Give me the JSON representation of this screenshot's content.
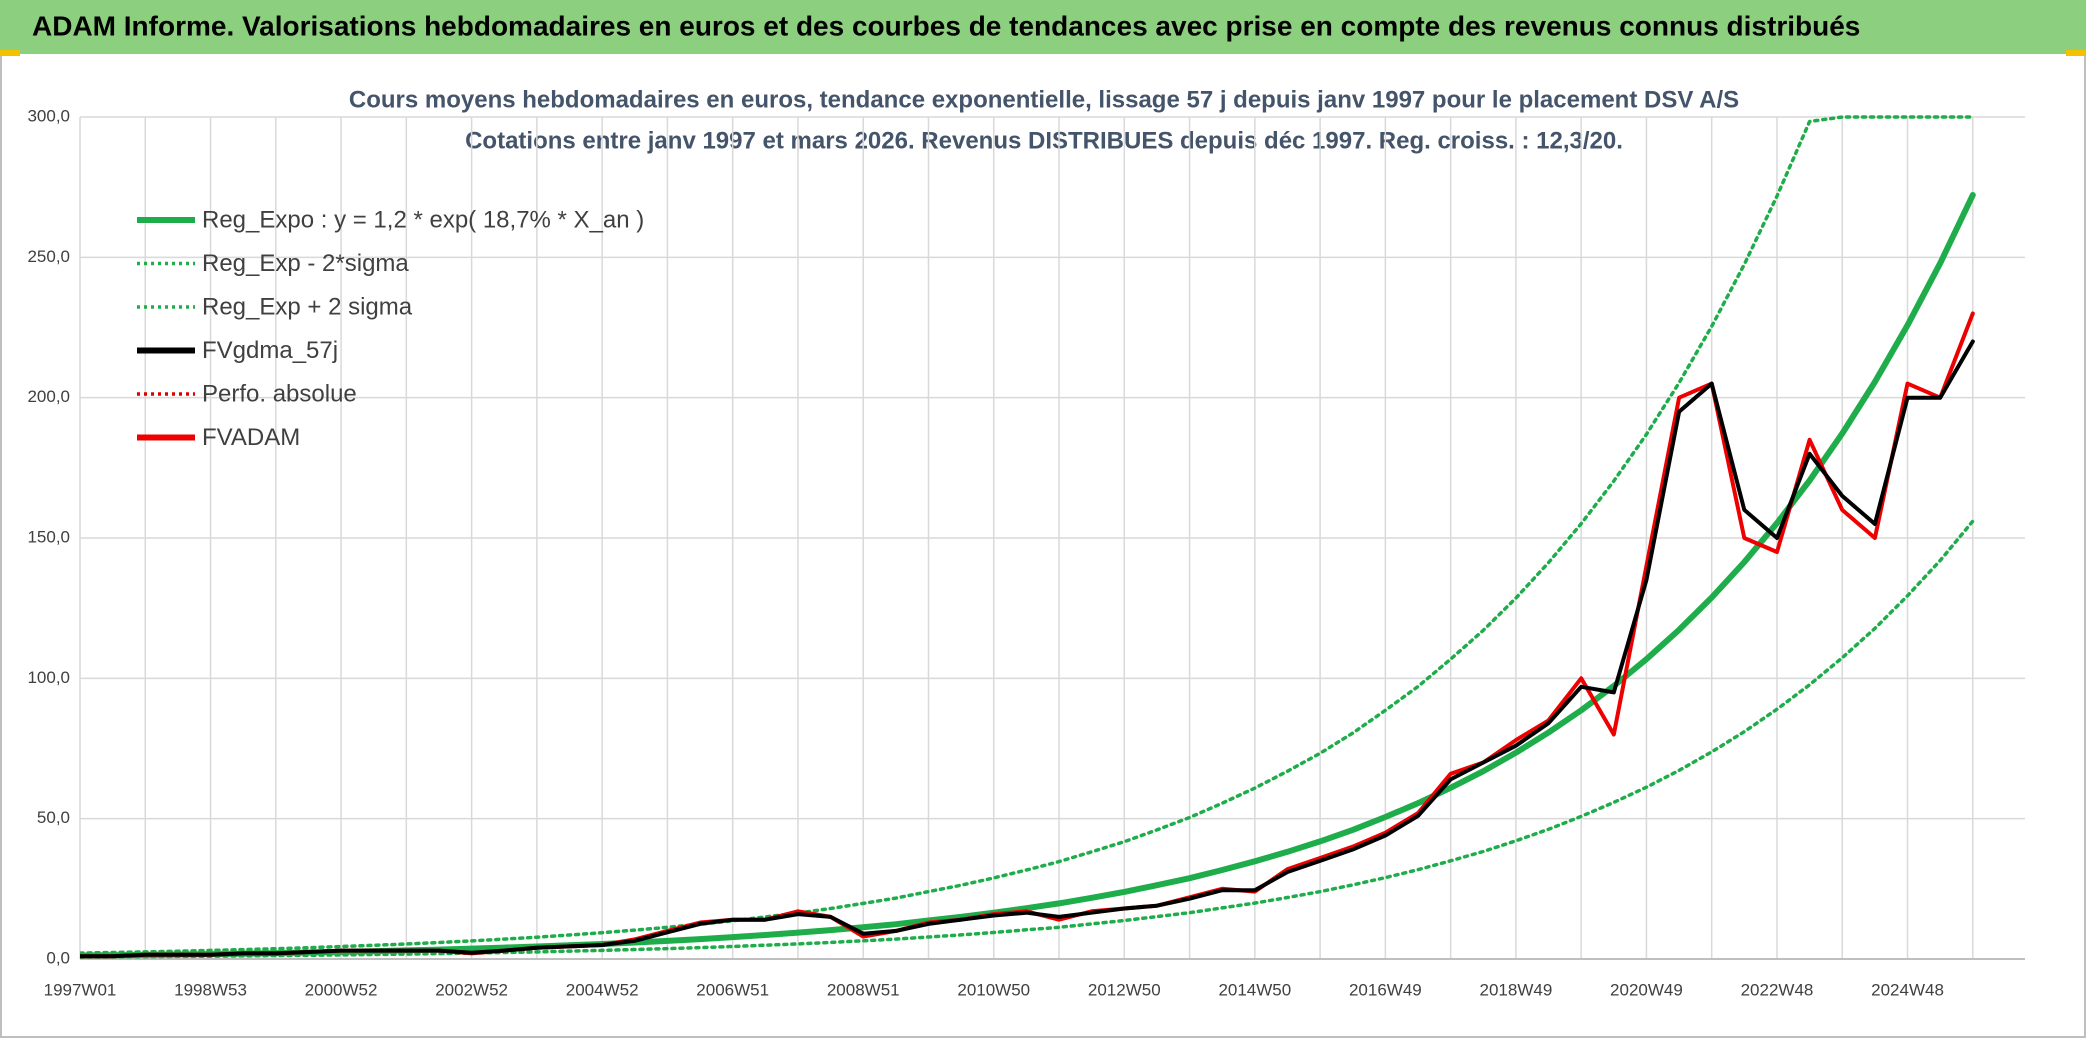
{
  "banner": "ADAM Informe. Valorisations hebdomadaires en euros et des courbes de tendances avec prise en compte des revenus connus distribués",
  "chart_data": {
    "type": "line",
    "title": "Cours moyens hebdomadaires en euros, tendance exponentielle, lissage 57 j depuis janv 1997 pour le placement DSV A/S",
    "subtitle": "Cotations entre janv 1997 et mars 2026. Revenus DISTRIBUES depuis déc 1997. Reg. croiss. : 12,3/20.",
    "categories": [
      "1997W01",
      null,
      null,
      null,
      "1998W53",
      null,
      null,
      null,
      "2000W52",
      null,
      null,
      null,
      "2002W52",
      null,
      null,
      null,
      "2004W52",
      null,
      null,
      null,
      "2006W51",
      null,
      null,
      null,
      "2008W51",
      null,
      null,
      null,
      "2010W50",
      null,
      null,
      null,
      "2012W50",
      null,
      null,
      null,
      "2014W50",
      null,
      null,
      null,
      "2016W49",
      null,
      null,
      null,
      "2018W49",
      null,
      null,
      null,
      "2020W49",
      null,
      null,
      null,
      "2022W48",
      null,
      null,
      null,
      "2024W48",
      null,
      null
    ],
    "ylim": [
      0,
      300
    ],
    "yticks": [
      {
        "value": 0,
        "label": "0,0"
      },
      {
        "value": 50,
        "label": "50,0"
      },
      {
        "value": 100,
        "label": "100,0"
      },
      {
        "value": 150,
        "label": "150,0"
      },
      {
        "value": 200,
        "label": "200,0"
      },
      {
        "value": 250,
        "label": "250,0"
      },
      {
        "value": 300,
        "label": "300,0"
      }
    ],
    "grid": true,
    "legend": "upper left",
    "series": [
      {
        "name": "Reg_Expo : y = 1,2 * exp( 18,7% *  X_an )",
        "color": "#1fad4b",
        "style": "solid",
        "values": [
          1.2,
          1.32,
          1.45,
          1.59,
          1.74,
          1.92,
          2.1,
          2.31,
          2.54,
          2.78,
          3.06,
          3.36,
          3.69,
          4.05,
          4.44,
          4.88,
          5.36,
          5.88,
          6.46,
          7.09,
          7.79,
          8.55,
          9.39,
          10.3,
          11.3,
          12.4,
          13.7,
          15.0,
          16.5,
          18.1,
          19.8,
          21.8,
          23.9,
          26.3,
          28.8,
          31.7,
          34.8,
          38.2,
          41.9,
          46.0,
          50.6,
          55.5,
          61.0,
          66.9,
          73.5,
          80.7,
          88.6,
          97.3,
          106.8,
          117.3,
          128.8,
          141.4,
          155.3,
          170.5,
          187.2,
          205.6,
          225.8,
          247.9,
          272.2
        ]
      },
      {
        "name": "Reg_Exp - 2*sigma",
        "color": "#1fad4b",
        "style": "dotted",
        "values": [
          0.69,
          0.76,
          0.83,
          0.91,
          1.0,
          1.1,
          1.2,
          1.32,
          1.46,
          1.59,
          1.75,
          1.93,
          2.11,
          2.32,
          2.54,
          2.8,
          3.07,
          3.37,
          3.7,
          4.06,
          4.46,
          4.9,
          5.38,
          5.9,
          6.47,
          7.1,
          7.85,
          8.6,
          9.45,
          10.4,
          11.3,
          12.5,
          13.7,
          15.1,
          16.5,
          18.2,
          19.9,
          21.9,
          24.0,
          26.4,
          29.0,
          31.8,
          35.0,
          38.3,
          42.1,
          46.2,
          50.8,
          55.8,
          61.2,
          67.2,
          73.8,
          81.0,
          89.0,
          97.7,
          107.3,
          117.8,
          129.4,
          142.0,
          156.0
        ]
      },
      {
        "name": "Reg_Exp + 2 sigma",
        "color": "#1fad4b",
        "style": "dotted",
        "values": [
          2.1,
          2.31,
          2.54,
          2.78,
          3.05,
          3.36,
          3.68,
          4.04,
          4.45,
          4.87,
          5.36,
          5.88,
          6.46,
          7.09,
          7.77,
          8.54,
          9.38,
          10.3,
          11.3,
          12.4,
          13.6,
          15.0,
          16.4,
          18.0,
          19.8,
          21.7,
          24.0,
          26.3,
          28.9,
          31.7,
          34.7,
          38.2,
          41.8,
          46.0,
          50.4,
          55.5,
          60.9,
          66.9,
          73.3,
          80.5,
          88.6,
          97.1,
          106.8,
          117.1,
          128.6,
          141.2,
          155.1,
          170.3,
          186.9,
          205.3,
          225.4,
          247.5,
          271.8,
          298.4,
          300,
          300,
          300,
          300,
          300
        ]
      },
      {
        "name": "FVgdma_57j",
        "color": "#000000",
        "style": "solid",
        "values": [
          1,
          1,
          1.5,
          1.5,
          1.5,
          2,
          2,
          2.5,
          3,
          3,
          3,
          3,
          2.2,
          3,
          4,
          4.5,
          5,
          6.5,
          9.5,
          12.5,
          14,
          14,
          16,
          15,
          9,
          10,
          12.5,
          14,
          15.5,
          16.5,
          15,
          16.5,
          18,
          19,
          21.5,
          24.5,
          24.5,
          31,
          35,
          39,
          44,
          51,
          64,
          70,
          76,
          84,
          97,
          95,
          135,
          195,
          205,
          160,
          150,
          180,
          165,
          155,
          200,
          200,
          220
        ]
      },
      {
        "name": "Perfo. absolue",
        "color": "#e00000",
        "style": "dotted"
      },
      {
        "name": "FVADAM",
        "color": "#ee0000",
        "style": "solid",
        "values": [
          1,
          1,
          1.5,
          1.5,
          1.5,
          2,
          2,
          2.5,
          3,
          3,
          3,
          3,
          2,
          3,
          4,
          4.5,
          5,
          7,
          10,
          13,
          14,
          14,
          17,
          15,
          8,
          10,
          13,
          14,
          16,
          17,
          14,
          17,
          18,
          19,
          22,
          25,
          24,
          32,
          36,
          40,
          45,
          52,
          66,
          70,
          78,
          85,
          100,
          80,
          140,
          200,
          205,
          150,
          145,
          185,
          160,
          150,
          205,
          200,
          230
        ]
      }
    ]
  }
}
